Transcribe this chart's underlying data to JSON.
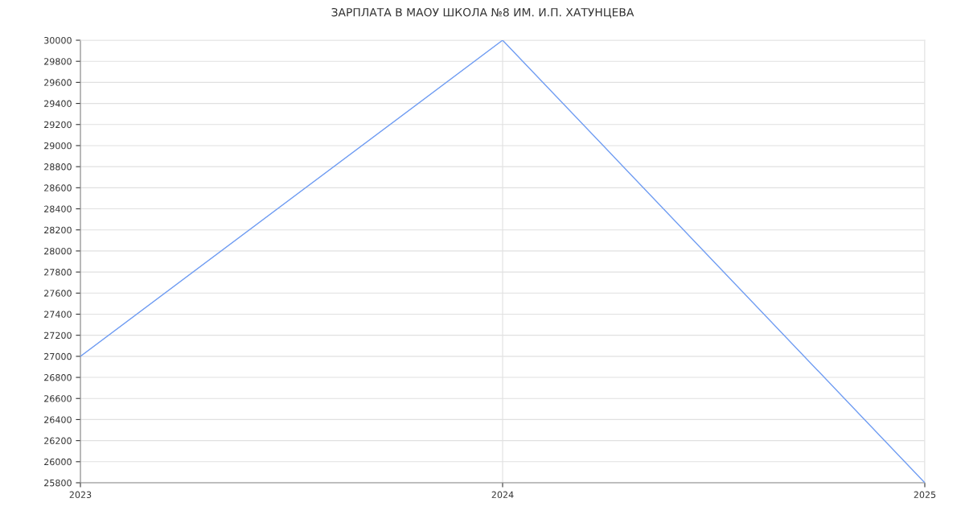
{
  "chart_data": {
    "type": "line",
    "title": "ЗАРПЛАТА В МАОУ ШКОЛА №8 ИМ. И.П. ХАТУНЦЕВА",
    "x": [
      2023,
      2024,
      2025
    ],
    "series": [
      {
        "color": "#6f9cf2",
        "values": [
          27000,
          30000,
          25800
        ]
      }
    ],
    "xlim": [
      2023,
      2025
    ],
    "xticks": [
      2023,
      2024,
      2025
    ],
    "ylim": [
      25800,
      30000
    ],
    "yticks": [
      25800,
      26000,
      26200,
      26400,
      26600,
      26800,
      27000,
      27200,
      27400,
      27600,
      27800,
      28000,
      28200,
      28400,
      28600,
      28800,
      29000,
      29200,
      29400,
      29600,
      29800,
      30000
    ],
    "grid": true,
    "marker": "none",
    "line_style": "solid",
    "legend": false
  }
}
